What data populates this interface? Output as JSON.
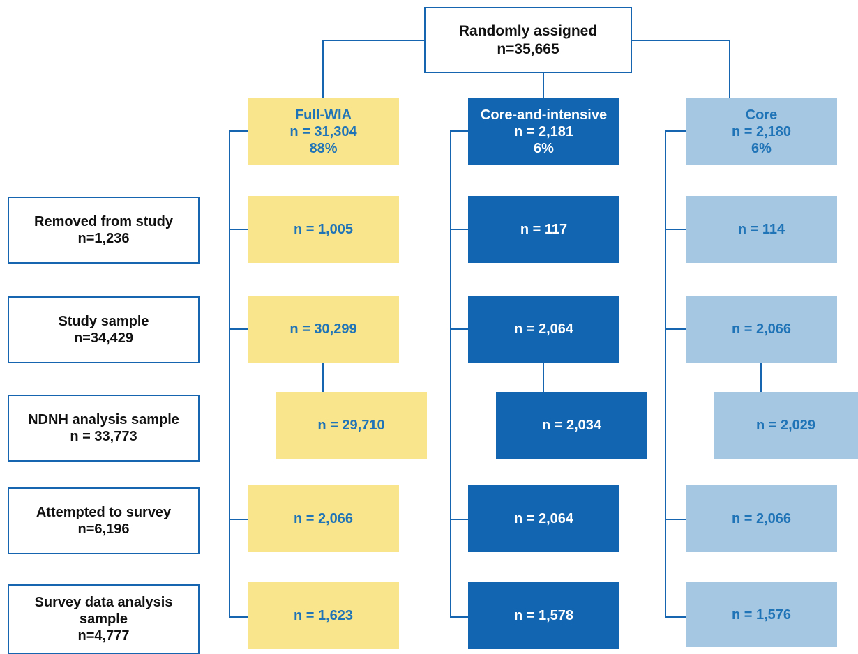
{
  "top": {
    "line1": "Randomly assigned",
    "line2": "n=35,665"
  },
  "columns": [
    {
      "title": "Full-WIA",
      "n": "n = 31,304",
      "pct": "88%",
      "colors": {
        "fill": "#f9e58c",
        "text": "#1f73b7"
      },
      "removed": "n = 1,005",
      "study": "n = 30,299",
      "ndnh": "n = 29,710",
      "attempted": "n = 2,066",
      "survey": "n = 1,623"
    },
    {
      "title": "Core-and-intensive",
      "n": "n = 2,181",
      "pct": "6%",
      "colors": {
        "fill": "#1265b0",
        "text": "#ffffff"
      },
      "removed": "n = 117",
      "study": "n = 2,064",
      "ndnh": "n = 2,034",
      "attempted": "n = 2,064",
      "survey": "n = 1,578"
    },
    {
      "title": "Core",
      "n": "n = 2,180",
      "pct": "6%",
      "colors": {
        "fill": "#a6c7e1",
        "text": "#1f73b7"
      },
      "removed": "n = 114",
      "study": "n = 2,066",
      "ndnh": "n = 2,029",
      "attempted": "n = 2,066",
      "survey": "n = 1,576"
    }
  ],
  "rows": [
    {
      "label": "Removed from study",
      "n": "n=1,236"
    },
    {
      "label": "Study sample",
      "n": "n=34,429"
    },
    {
      "label": "NDNH analysis sample",
      "n": "n = 33,773"
    },
    {
      "label": "Attempted to survey",
      "n": "n=6,196"
    },
    {
      "label": "Survey data analysis sample",
      "n": "n=4,777"
    }
  ],
  "colors": {
    "line": "#1565b0",
    "border": "#1565b0"
  }
}
